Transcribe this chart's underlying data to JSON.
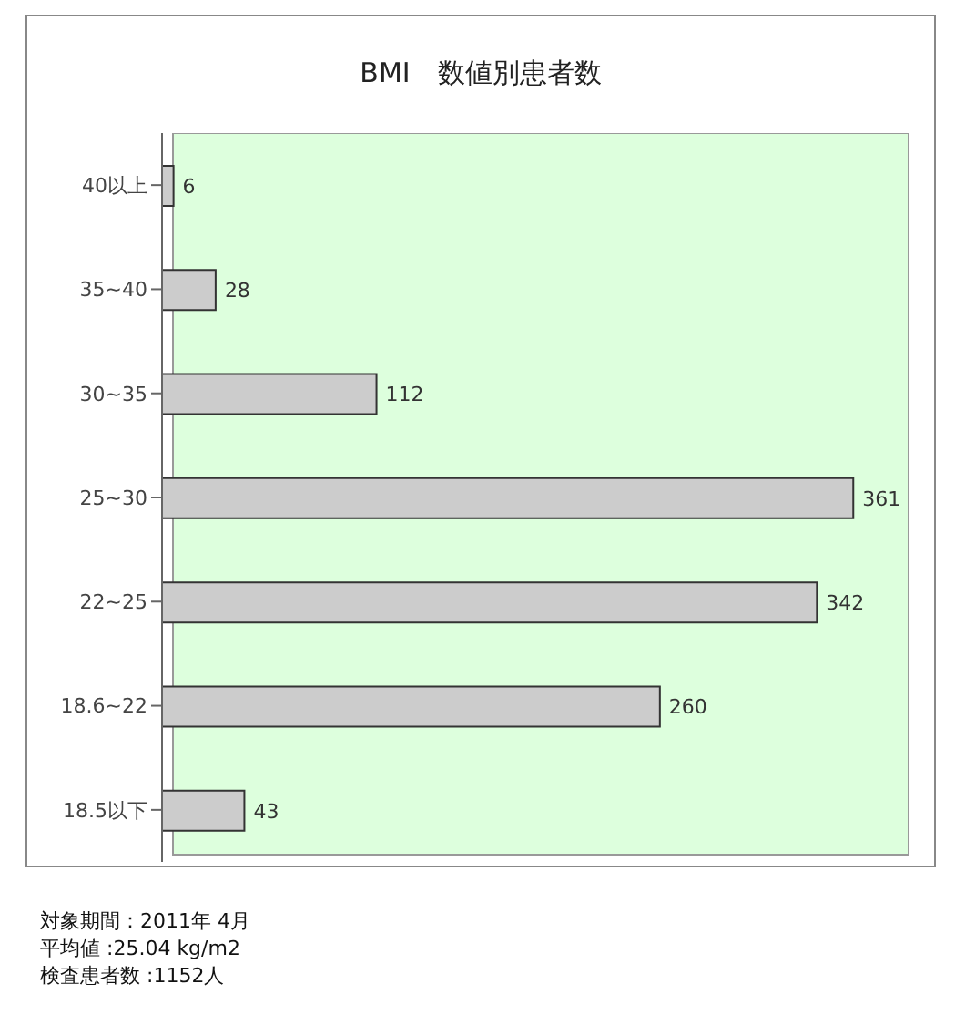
{
  "chart_data": {
    "type": "bar",
    "orientation": "horizontal",
    "title": "BMI　数値別患者数",
    "categories": [
      "40以上",
      "35~40",
      "30~35",
      "25~30",
      "22~25",
      "18.6~22",
      "18.5以下"
    ],
    "values": [
      6,
      28,
      112,
      361,
      342,
      260,
      43
    ],
    "color": "#cccccc",
    "data_labels": true,
    "grid": false,
    "legend": false,
    "tick_labels": "y",
    "annotations": [
      "対象期間：2011年 4月",
      "平均値 :25.04 kg/m2",
      "検査患者数 :1152人"
    ]
  }
}
